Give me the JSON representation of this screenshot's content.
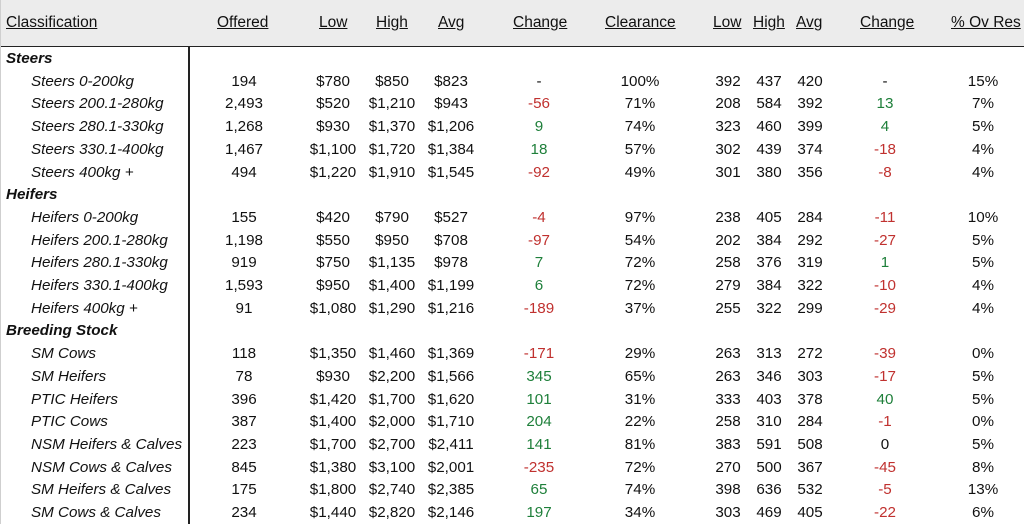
{
  "headers": {
    "classification": "Classification",
    "offered": "Offered",
    "low": "Low",
    "high": "High",
    "avg": "Avg",
    "change": "Change",
    "clearance": "Clearance",
    "low2": "Low",
    "high2": "High",
    "avg2": "Avg",
    "change2": "Change",
    "ov_res": "% Ov Res"
  },
  "colors": {
    "negative": "#c0312f",
    "positive": "#1e7f3a",
    "header_bg": "#ececec"
  },
  "rows": [
    {
      "type": "category",
      "label": "Steers"
    },
    {
      "type": "item",
      "label": "Steers 0-200kg",
      "offered": "194",
      "low": "$780",
      "high": "$850",
      "avg": "$823",
      "change": "-",
      "clearance": "100%",
      "low2": "392",
      "high2": "437",
      "avg2": "420",
      "change2": "-",
      "ov_res": "15%"
    },
    {
      "type": "item",
      "label": "Steers 200.1-280kg",
      "offered": "2,493",
      "low": "$520",
      "high": "$1,210",
      "avg": "$943",
      "change": "-56",
      "clearance": "71%",
      "low2": "208",
      "high2": "584",
      "avg2": "392",
      "change2": "13",
      "ov_res": "7%"
    },
    {
      "type": "item",
      "label": "Steers 280.1-330kg",
      "offered": "1,268",
      "low": "$930",
      "high": "$1,370",
      "avg": "$1,206",
      "change": "9",
      "clearance": "74%",
      "low2": "323",
      "high2": "460",
      "avg2": "399",
      "change2": "4",
      "ov_res": "5%"
    },
    {
      "type": "item",
      "label": "Steers 330.1-400kg",
      "offered": "1,467",
      "low": "$1,100",
      "high": "$1,720",
      "avg": "$1,384",
      "change": "18",
      "clearance": "57%",
      "low2": "302",
      "high2": "439",
      "avg2": "374",
      "change2": "-18",
      "ov_res": "4%"
    },
    {
      "type": "item",
      "label": "Steers 400kg +",
      "offered": "494",
      "low": "$1,220",
      "high": "$1,910",
      "avg": "$1,545",
      "change": "-92",
      "clearance": "49%",
      "low2": "301",
      "high2": "380",
      "avg2": "356",
      "change2": "-8",
      "ov_res": "4%"
    },
    {
      "type": "category",
      "label": "Heifers"
    },
    {
      "type": "item",
      "label": "Heifers 0-200kg",
      "offered": "155",
      "low": "$420",
      "high": "$790",
      "avg": "$527",
      "change": "-4",
      "clearance": "97%",
      "low2": "238",
      "high2": "405",
      "avg2": "284",
      "change2": "-11",
      "ov_res": "10%"
    },
    {
      "type": "item",
      "label": "Heifers 200.1-280kg",
      "offered": "1,198",
      "low": "$550",
      "high": "$950",
      "avg": "$708",
      "change": "-97",
      "clearance": "54%",
      "low2": "202",
      "high2": "384",
      "avg2": "292",
      "change2": "-27",
      "ov_res": "5%"
    },
    {
      "type": "item",
      "label": "Heifers 280.1-330kg",
      "offered": "919",
      "low": "$750",
      "high": "$1,135",
      "avg": "$978",
      "change": "7",
      "clearance": "72%",
      "low2": "258",
      "high2": "376",
      "avg2": "319",
      "change2": "1",
      "ov_res": "5%"
    },
    {
      "type": "item",
      "label": "Heifers 330.1-400kg",
      "offered": "1,593",
      "low": "$950",
      "high": "$1,400",
      "avg": "$1,199",
      "change": "6",
      "clearance": "72%",
      "low2": "279",
      "high2": "384",
      "avg2": "322",
      "change2": "-10",
      "ov_res": "4%"
    },
    {
      "type": "item",
      "label": "Heifers 400kg +",
      "offered": "91",
      "low": "$1,080",
      "high": "$1,290",
      "avg": "$1,216",
      "change": "-189",
      "clearance": "37%",
      "low2": "255",
      "high2": "322",
      "avg2": "299",
      "change2": "-29",
      "ov_res": "4%"
    },
    {
      "type": "category",
      "label": "Breeding Stock"
    },
    {
      "type": "item",
      "label": "SM Cows",
      "offered": "118",
      "low": "$1,350",
      "high": "$1,460",
      "avg": "$1,369",
      "change": "-171",
      "clearance": "29%",
      "low2": "263",
      "high2": "313",
      "avg2": "272",
      "change2": "-39",
      "ov_res": "0%"
    },
    {
      "type": "item",
      "label": "SM Heifers",
      "offered": "78",
      "low": "$930",
      "high": "$2,200",
      "avg": "$1,566",
      "change": "345",
      "clearance": "65%",
      "low2": "263",
      "high2": "346",
      "avg2": "303",
      "change2": "-17",
      "ov_res": "5%"
    },
    {
      "type": "item",
      "label": "PTIC Heifers",
      "offered": "396",
      "low": "$1,420",
      "high": "$1,700",
      "avg": "$1,620",
      "change": "101",
      "clearance": "31%",
      "low2": "333",
      "high2": "403",
      "avg2": "378",
      "change2": "40",
      "ov_res": "5%"
    },
    {
      "type": "item",
      "label": "PTIC Cows",
      "offered": "387",
      "low": "$1,400",
      "high": "$2,000",
      "avg": "$1,710",
      "change": "204",
      "clearance": "22%",
      "low2": "258",
      "high2": "310",
      "avg2": "284",
      "change2": "-1",
      "ov_res": "0%"
    },
    {
      "type": "item",
      "label": "NSM Heifers & Calves",
      "offered": "223",
      "low": "$1,700",
      "high": "$2,700",
      "avg": "$2,411",
      "change": "141",
      "clearance": "81%",
      "low2": "383",
      "high2": "591",
      "avg2": "508",
      "change2": "0",
      "ov_res": "5%"
    },
    {
      "type": "item",
      "label": "NSM Cows & Calves",
      "offered": "845",
      "low": "$1,380",
      "high": "$3,100",
      "avg": "$2,001",
      "change": "-235",
      "clearance": "72%",
      "low2": "270",
      "high2": "500",
      "avg2": "367",
      "change2": "-45",
      "ov_res": "8%"
    },
    {
      "type": "item",
      "label": "SM Heifers & Calves",
      "offered": "175",
      "low": "$1,800",
      "high": "$2,740",
      "avg": "$2,385",
      "change": "65",
      "clearance": "74%",
      "low2": "398",
      "high2": "636",
      "avg2": "532",
      "change2": "-5",
      "ov_res": "13%"
    },
    {
      "type": "item",
      "label": "SM Cows & Calves",
      "offered": "234",
      "low": "$1,440",
      "high": "$2,820",
      "avg": "$2,146",
      "change": "197",
      "clearance": "34%",
      "low2": "303",
      "high2": "469",
      "avg2": "405",
      "change2": "-22",
      "ov_res": "6%"
    }
  ]
}
